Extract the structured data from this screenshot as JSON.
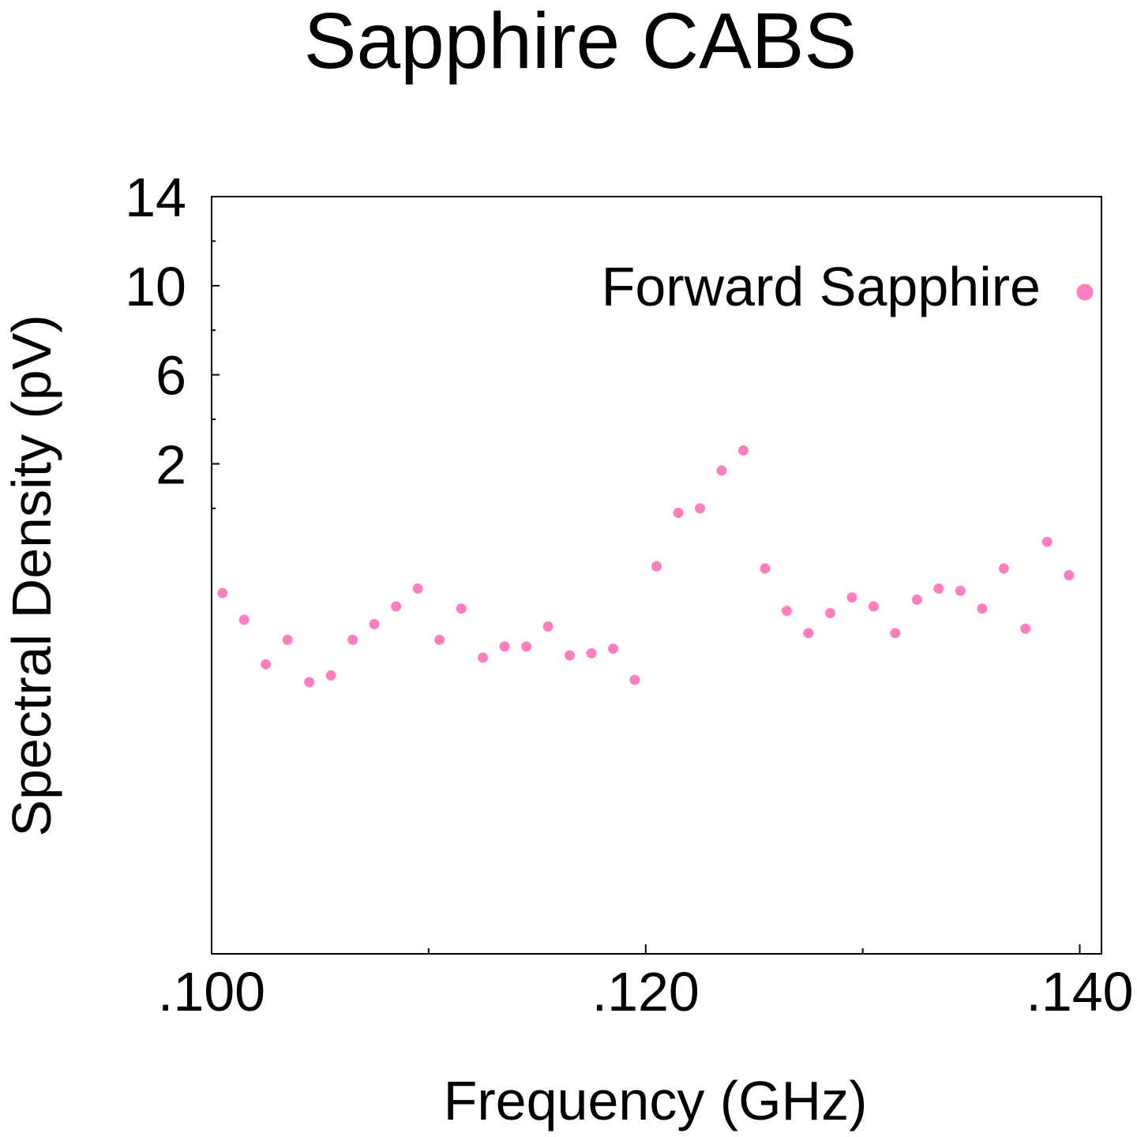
{
  "chart_data": {
    "type": "scatter",
    "title": "Sapphire CABS",
    "xlabel": "Frequency (GHz)",
    "ylabel": "Spectral Density (pV)",
    "xlim": [
      0.1,
      0.141
    ],
    "ylim": [
      -20,
      14
    ],
    "x_ticks": [
      {
        "value": 0.1,
        "label": ".100"
      },
      {
        "value": 0.12,
        "label": ".120"
      },
      {
        "value": 0.14,
        "label": ".140"
      }
    ],
    "x_minor_ticks": [
      0.11,
      0.13
    ],
    "y_ticks": [
      {
        "value": 14,
        "label": "14"
      },
      {
        "value": 10,
        "label": "10"
      },
      {
        "value": 6,
        "label": "6"
      },
      {
        "value": 2,
        "label": "2"
      }
    ],
    "y_minor_ticks": [
      12,
      8,
      4,
      0
    ],
    "grid": false,
    "legend_position": "top-right",
    "series": [
      {
        "name": "Forward Sapphire",
        "color": "#ff7ebf",
        "x": [
          0.1005,
          0.1015,
          0.1025,
          0.1035,
          0.1045,
          0.1055,
          0.1065,
          0.1075,
          0.1085,
          0.1095,
          0.1105,
          0.1115,
          0.1125,
          0.1135,
          0.1145,
          0.1155,
          0.1165,
          0.1175,
          0.1185,
          0.1195,
          0.1205,
          0.1215,
          0.1225,
          0.1235,
          0.1245,
          0.1255,
          0.1265,
          0.1275,
          0.1285,
          0.1295,
          0.1305,
          0.1315,
          0.1325,
          0.1335,
          0.1345,
          0.1355,
          0.1365,
          0.1375,
          0.1385,
          0.1395
        ],
        "y": [
          -3.8,
          -5.0,
          -7.0,
          -5.9,
          -7.8,
          -7.5,
          -5.9,
          -5.2,
          -4.4,
          -3.6,
          -5.9,
          -4.5,
          -6.7,
          -6.2,
          -6.2,
          -5.3,
          -6.6,
          -6.5,
          -6.3,
          -7.7,
          -2.6,
          -0.2,
          0.0,
          1.7,
          2.6,
          -2.7,
          -4.6,
          -5.6,
          -4.7,
          -4.0,
          -4.4,
          -5.6,
          -4.1,
          -3.6,
          -3.7,
          -4.5,
          -2.7,
          -5.4,
          -1.5,
          -3.0
        ]
      }
    ]
  }
}
